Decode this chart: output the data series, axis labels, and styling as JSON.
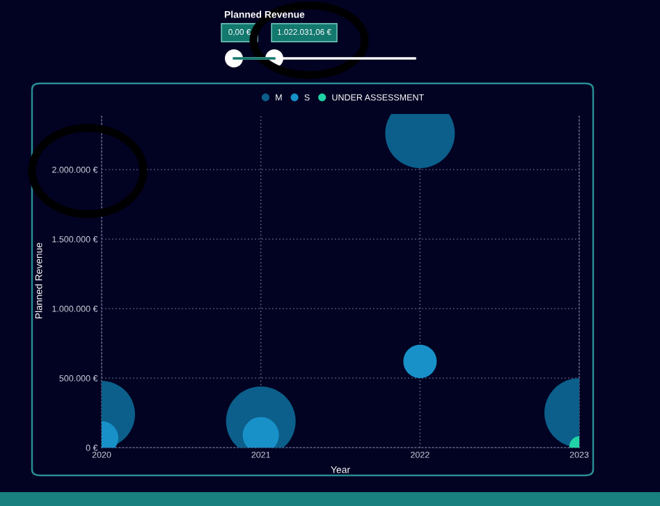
{
  "chart_data": {
    "type": "bubble",
    "xlabel": "Year",
    "ylabel": "Planned Revenue",
    "annotations": [
      "Planned Revenue",
      "0,00 €",
      "1.022.031,06 €"
    ],
    "xlim": [
      2020,
      2023
    ],
    "xticks": [
      2020,
      2021,
      2022,
      2023
    ],
    "ylim": [
      0,
      2400000
    ],
    "yticks": [
      {
        "value": 0,
        "label": "0 €"
      },
      {
        "value": 500000,
        "label": "500.000 €"
      },
      {
        "value": 1000000,
        "label": "1.000.000 €"
      },
      {
        "value": 1500000,
        "label": "1.500.000 €"
      },
      {
        "value": 2000000,
        "label": "2.000.000 €"
      }
    ],
    "grid": true,
    "legend": "top",
    "marker": "circle",
    "series": [
      {
        "name": "M",
        "color": "#0b5f8a",
        "x": [
          2020,
          2021,
          2022,
          2023
        ],
        "values": [
          240000,
          190000,
          2260000,
          250000
        ],
        "sizes": [
          0.92,
          1,
          1,
          1
        ]
      },
      {
        "name": "S",
        "color": "#1891c9",
        "x": [
          2020,
          2021,
          2022
        ],
        "values": [
          70000,
          90000,
          620000
        ],
        "sizes": [
          0.23,
          0.27,
          0.23
        ]
      },
      {
        "name": "UNDER ASSESSMENT",
        "color": "#20d3a6",
        "x": [
          2023
        ],
        "values": [
          10000
        ],
        "sizes": [
          0.08
        ]
      }
    ]
  }
}
